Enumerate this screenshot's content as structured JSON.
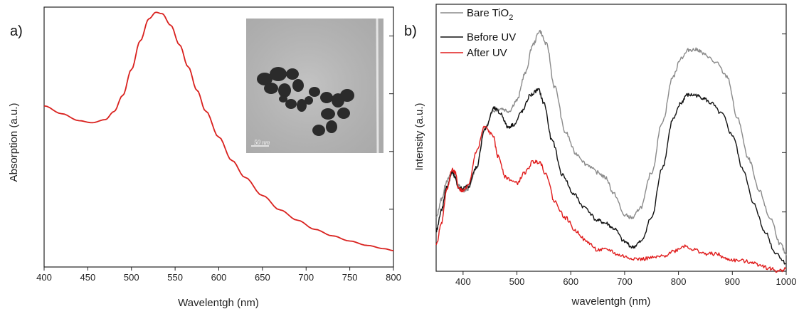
{
  "chart_data": [
    {
      "panel_label": "a)",
      "type": "line",
      "xlabel": "Wavelentgh (nm)",
      "ylabel": "Absorption (a.u.)",
      "xlim": [
        400,
        800
      ],
      "ylim": [
        0,
        1.0
      ],
      "xticks": [
        400,
        450,
        500,
        550,
        600,
        650,
        700,
        750,
        800
      ],
      "y_tick_labels_shown": false,
      "grid": false,
      "series": [
        {
          "color": "#d9211e",
          "x": [
            400,
            420,
            440,
            455,
            470,
            480,
            490,
            500,
            510,
            520,
            528,
            535,
            545,
            555,
            565,
            575,
            585,
            600,
            615,
            630,
            650,
            670,
            690,
            710,
            730,
            750,
            770,
            790,
            800
          ],
          "y": [
            0.62,
            0.59,
            0.563,
            0.555,
            0.567,
            0.598,
            0.66,
            0.76,
            0.87,
            0.955,
            0.98,
            0.975,
            0.93,
            0.855,
            0.77,
            0.68,
            0.6,
            0.5,
            0.41,
            0.345,
            0.275,
            0.22,
            0.18,
            0.145,
            0.12,
            0.1,
            0.083,
            0.07,
            0.063
          ]
        }
      ],
      "inset": {
        "kind": "TEM micrograph",
        "scale_bar_label": "50 nm"
      }
    },
    {
      "panel_label": "b)",
      "type": "line",
      "xlabel": "wavelentgh (nm)",
      "ylabel": "Intensity (a.u.)",
      "xlim": [
        350,
        1000
      ],
      "ylim": [
        0,
        1.0
      ],
      "xticks": [
        400,
        500,
        600,
        700,
        800,
        900,
        1000
      ],
      "y_tick_labels_shown": false,
      "grid": false,
      "legend_position": "top-left",
      "series": [
        {
          "name": "Bare TiO",
          "name_subscript": "2",
          "color": "#8a8a8a",
          "x": [
            350,
            360,
            370,
            380,
            385,
            392,
            400,
            410,
            425,
            440,
            455,
            470,
            485,
            500,
            515,
            530,
            542,
            555,
            570,
            590,
            610,
            630,
            650,
            665,
            680,
            700,
            715,
            730,
            750,
            770,
            790,
            805,
            820,
            835,
            850,
            870,
            890,
            910,
            930,
            950,
            970,
            990,
            1000
          ],
          "y": [
            0.2,
            0.27,
            0.34,
            0.37,
            0.36,
            0.32,
            0.3,
            0.31,
            0.39,
            0.53,
            0.6,
            0.61,
            0.6,
            0.64,
            0.74,
            0.85,
            0.9,
            0.85,
            0.69,
            0.52,
            0.44,
            0.4,
            0.37,
            0.35,
            0.29,
            0.21,
            0.2,
            0.24,
            0.37,
            0.56,
            0.73,
            0.8,
            0.83,
            0.83,
            0.81,
            0.78,
            0.73,
            0.57,
            0.42,
            0.3,
            0.2,
            0.1,
            0.06
          ]
        },
        {
          "name": "Before UV",
          "color": "#111111",
          "x": [
            350,
            360,
            370,
            380,
            385,
            392,
            400,
            410,
            425,
            440,
            458,
            470,
            483,
            495,
            510,
            525,
            540,
            550,
            565,
            585,
            605,
            625,
            650,
            665,
            680,
            700,
            715,
            730,
            750,
            770,
            790,
            805,
            815,
            830,
            845,
            860,
            880,
            900,
            920,
            940,
            960,
            980,
            1000
          ],
          "y": [
            0.15,
            0.23,
            0.32,
            0.37,
            0.35,
            0.31,
            0.31,
            0.32,
            0.39,
            0.53,
            0.61,
            0.59,
            0.54,
            0.55,
            0.6,
            0.66,
            0.68,
            0.63,
            0.49,
            0.36,
            0.29,
            0.24,
            0.19,
            0.18,
            0.16,
            0.11,
            0.09,
            0.11,
            0.2,
            0.39,
            0.57,
            0.63,
            0.66,
            0.66,
            0.65,
            0.63,
            0.59,
            0.51,
            0.38,
            0.25,
            0.15,
            0.07,
            0.03
          ]
        },
        {
          "name": "After UV",
          "color": "#e01b1b",
          "x": [
            350,
            360,
            370,
            380,
            385,
            392,
            400,
            410,
            425,
            440,
            455,
            465,
            480,
            500,
            515,
            530,
            542,
            555,
            570,
            590,
            610,
            630,
            650,
            670,
            690,
            710,
            730,
            750,
            770,
            790,
            812,
            830,
            850,
            870,
            890,
            910,
            935,
            950,
            970,
            985,
            1000
          ],
          "y": [
            0.1,
            0.18,
            0.31,
            0.38,
            0.37,
            0.31,
            0.3,
            0.32,
            0.45,
            0.54,
            0.51,
            0.43,
            0.35,
            0.33,
            0.37,
            0.41,
            0.41,
            0.36,
            0.26,
            0.2,
            0.15,
            0.11,
            0.08,
            0.08,
            0.06,
            0.05,
            0.045,
            0.05,
            0.055,
            0.075,
            0.095,
            0.08,
            0.065,
            0.065,
            0.045,
            0.04,
            0.035,
            0.025,
            0.01,
            0.0,
            0.01
          ]
        }
      ]
    }
  ],
  "colors": {
    "axis": "#222222",
    "tem_background": "#b8b8b8"
  }
}
